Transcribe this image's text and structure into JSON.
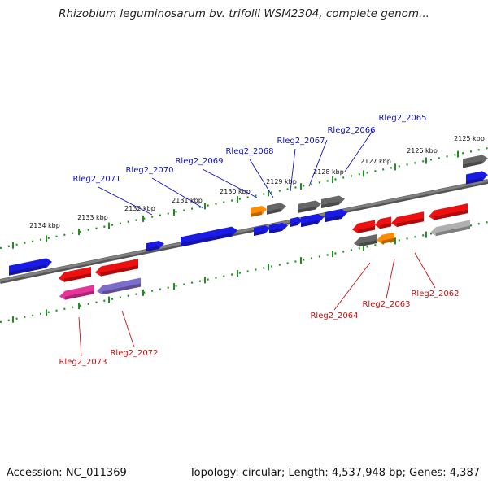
{
  "title": "Rhizobium leguminosarum bv. trifolii WSM2304, complete genom...",
  "footer": {
    "accession": "Accession: NC_011369",
    "summary": "Topology: circular; Length: 4,537,948 bp; Genes: 4,387"
  },
  "colors": {
    "backbone": "#808080",
    "tick": "#1f8f1f",
    "forward_label": "#1010c8",
    "reverse_label": "#c81010",
    "gene_blue": "#1a1ae6",
    "gene_red": "#ee1010",
    "gene_gray": "#666666",
    "gene_orange": "#ff8c00",
    "gene_pink": "#e8349a",
    "gene_purple": "#7e6ccc",
    "gene_lightgray": "#b0b0b0"
  },
  "scale_labels": [
    "2125 kbp",
    "2126 kbp",
    "2127 kbp",
    "2128 kbp",
    "2129 kbp",
    "2130 kbp",
    "2131 kbp",
    "2132 kbp",
    "2133 kbp",
    "2134 kbp"
  ],
  "forward_gene_labels": [
    "Rleg2_2065",
    "Rleg2_2066",
    "Rleg2_2067",
    "Rleg2_2068",
    "Rleg2_2069",
    "Rleg2_2070",
    "Rleg2_2071"
  ],
  "reverse_gene_labels": [
    "Rleg2_2062",
    "Rleg2_2063",
    "Rleg2_2064",
    "Rleg2_2072",
    "Rleg2_2073"
  ],
  "genes": [
    {
      "strand": "forward",
      "color": "gene_blue"
    },
    {
      "strand": "forward",
      "color": "gene_blue"
    },
    {
      "strand": "forward",
      "color": "gene_blue"
    },
    {
      "strand": "forward",
      "color": "gene_blue"
    },
    {
      "strand": "forward",
      "color": "gene_blue"
    },
    {
      "strand": "forward",
      "color": "gene_blue"
    },
    {
      "strand": "forward",
      "color": "gene_blue"
    },
    {
      "strand": "forward",
      "color": "gene_blue"
    },
    {
      "strand": "forward",
      "color": "gene_blue"
    },
    {
      "strand": "forward",
      "color": "gene_orange"
    },
    {
      "strand": "forward",
      "color": "gene_gray"
    },
    {
      "strand": "forward",
      "color": "gene_gray"
    },
    {
      "strand": "forward",
      "color": "gene_gray"
    },
    {
      "strand": "forward",
      "color": "gene_gray"
    },
    {
      "strand": "reverse",
      "color": "gene_red"
    },
    {
      "strand": "reverse",
      "color": "gene_red"
    },
    {
      "strand": "reverse",
      "color": "gene_red"
    },
    {
      "strand": "reverse",
      "color": "gene_red"
    },
    {
      "strand": "reverse",
      "color": "gene_red"
    },
    {
      "strand": "reverse",
      "color": "gene_red"
    },
    {
      "strand": "reverse",
      "color": "gene_gray"
    },
    {
      "strand": "reverse",
      "color": "gene_orange"
    },
    {
      "strand": "reverse",
      "color": "gene_lightgray"
    },
    {
      "strand": "reverse",
      "color": "gene_pink"
    },
    {
      "strand": "reverse",
      "color": "gene_purple"
    }
  ]
}
